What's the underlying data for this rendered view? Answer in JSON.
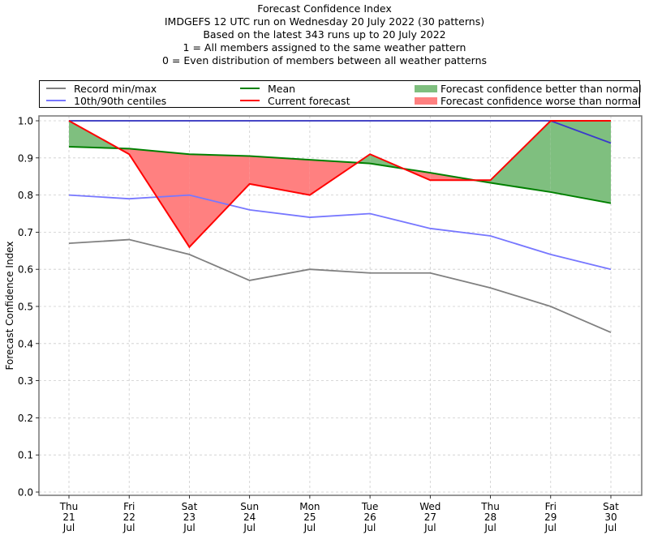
{
  "chart_data": {
    "type": "line",
    "title_lines": [
      "Forecast Confidence Index",
      "IMDGEFS 12 UTC run on Wednesday 20 July 2022 (30 patterns)",
      "Based on the latest 343 runs up to 20 July 2022",
      "1 = All members assigned to the same weather pattern",
      "0 = Even distribution of members between all weather patterns"
    ],
    "xlabel": "",
    "ylabel": "Forecast Confidence Index",
    "ylim": [
      0.0,
      1.0
    ],
    "yticks": [
      "0.0",
      "0.1",
      "0.2",
      "0.3",
      "0.4",
      "0.5",
      "0.6",
      "0.7",
      "0.8",
      "0.9",
      "1.0"
    ],
    "ytick_values": [
      0.0,
      0.1,
      0.2,
      0.3,
      0.4,
      0.5,
      0.6,
      0.7,
      0.8,
      0.9,
      1.0
    ],
    "grid": true,
    "legend_position": "top, above plot",
    "categories": [
      {
        "day": "Thu",
        "date": "21",
        "month": "Jul"
      },
      {
        "day": "Fri",
        "date": "22",
        "month": "Jul"
      },
      {
        "day": "Sat",
        "date": "23",
        "month": "Jul"
      },
      {
        "day": "Sun",
        "date": "24",
        "month": "Jul"
      },
      {
        "day": "Mon",
        "date": "25",
        "month": "Jul"
      },
      {
        "day": "Tue",
        "date": "26",
        "month": "Jul"
      },
      {
        "day": "Wed",
        "date": "27",
        "month": "Jul"
      },
      {
        "day": "Thu",
        "date": "28",
        "month": "Jul"
      },
      {
        "day": "Fri",
        "date": "29",
        "month": "Jul"
      },
      {
        "day": "Sat",
        "date": "30",
        "month": "Jul"
      }
    ],
    "series": [
      {
        "name": "Record min",
        "legend": "Record min/max",
        "color": "#808080",
        "values": [
          0.67,
          0.68,
          0.64,
          0.57,
          0.6,
          0.59,
          0.59,
          0.55,
          0.5,
          0.43
        ]
      },
      {
        "name": "Record max",
        "legend": "Record min/max",
        "color": "#808080",
        "values": [
          1.0,
          1.0,
          1.0,
          1.0,
          1.0,
          1.0,
          1.0,
          1.0,
          1.0,
          1.0
        ]
      },
      {
        "name": "10th centile",
        "legend": "10th/90th centiles",
        "color": "#7777ff",
        "values": [
          0.8,
          0.79,
          0.8,
          0.76,
          0.74,
          0.75,
          0.71,
          0.69,
          0.64,
          0.6
        ]
      },
      {
        "name": "90th centile",
        "legend": "10th/90th centiles",
        "color": "#3a3acc",
        "values": [
          1.0,
          1.0,
          1.0,
          1.0,
          1.0,
          1.0,
          1.0,
          1.0,
          1.0,
          0.94
        ]
      },
      {
        "name": "Mean",
        "legend": "Mean",
        "color": "#008000",
        "values": [
          0.93,
          0.925,
          0.91,
          0.905,
          0.895,
          0.885,
          0.86,
          0.833,
          0.808,
          0.778
        ]
      },
      {
        "name": "Current forecast",
        "legend": "Current forecast",
        "color": "#ff0000",
        "values": [
          1.0,
          0.91,
          0.66,
          0.83,
          0.8,
          0.91,
          0.84,
          0.84,
          1.0,
          1.0
        ]
      }
    ],
    "fills": [
      {
        "name": "Forecast confidence better than normal",
        "color": "#7fbf7f"
      },
      {
        "name": "Forecast confidence worse than normal",
        "color": "#ff8080"
      }
    ],
    "legend_entries": [
      {
        "label": "Record min/max",
        "kind": "line",
        "color": "#808080"
      },
      {
        "label": "10th/90th centiles",
        "kind": "line",
        "color": "#7777ff"
      },
      {
        "label": "Mean",
        "kind": "line",
        "color": "#008000"
      },
      {
        "label": "Current forecast",
        "kind": "line",
        "color": "#ff0000"
      },
      {
        "label": "Forecast confidence better than normal",
        "kind": "patch",
        "color": "#7fbf7f"
      },
      {
        "label": "Forecast confidence worse than normal",
        "kind": "patch",
        "color": "#ff8080"
      }
    ]
  }
}
